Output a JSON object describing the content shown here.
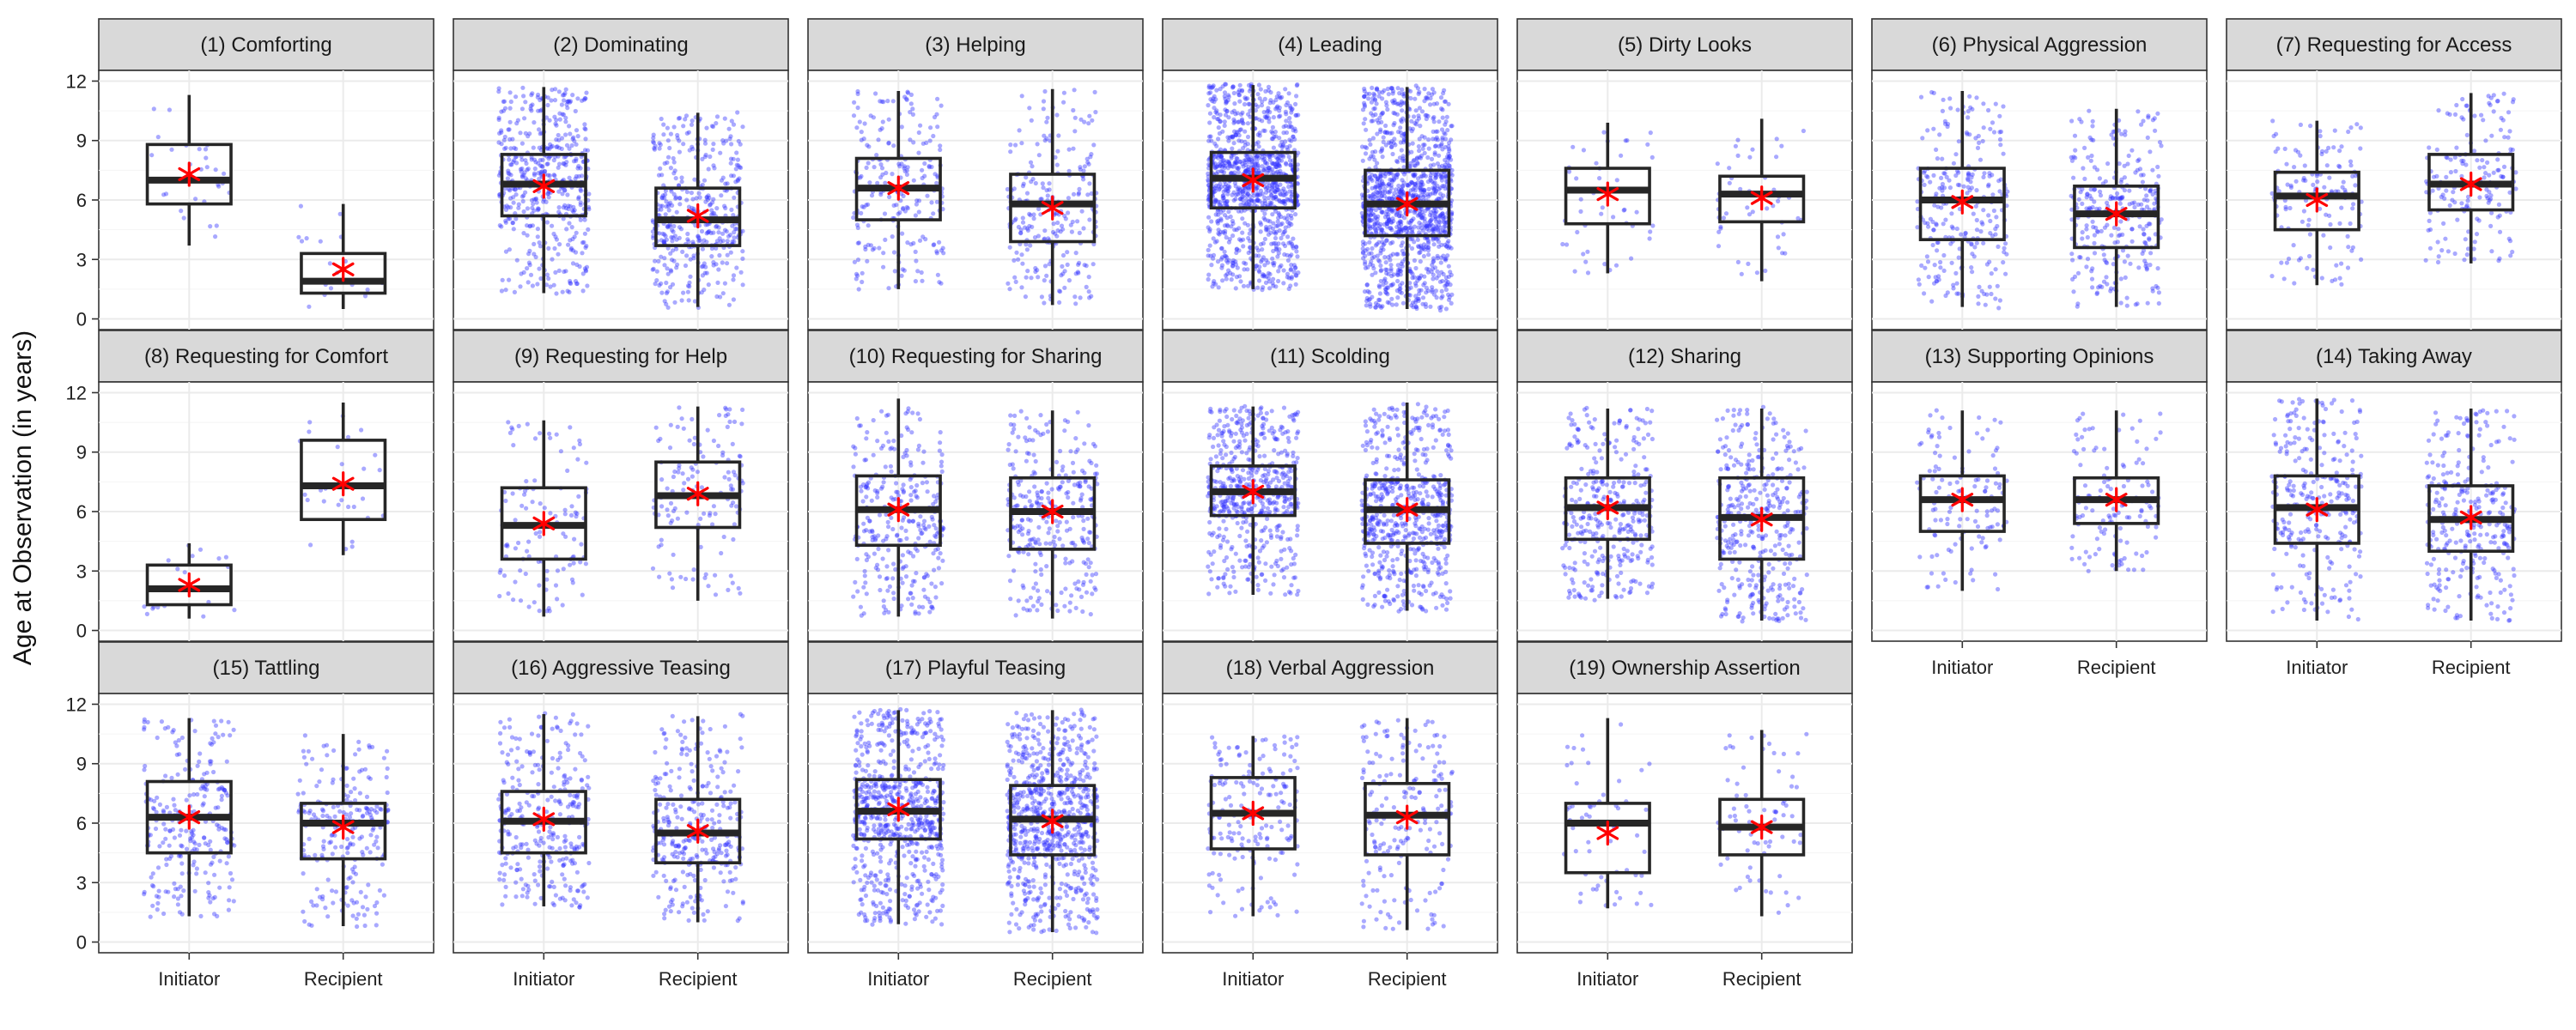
{
  "colors": {
    "points": "#3333ff",
    "mean": "#ff0000",
    "box": "#262626"
  },
  "chart_data": {
    "type": "boxplot",
    "xlabel": "",
    "ylabel": "Age at Observation (in years)",
    "ylim": [
      0,
      12
    ],
    "yticks": [
      0,
      3,
      6,
      9,
      12
    ],
    "categories": [
      "Initiator",
      "Recipient"
    ],
    "grid": true,
    "overlay": "jittered raw points (blue) and group mean (red asterisk)",
    "panels": [
      {
        "title": "(1) Comforting",
        "n": [
          30,
          18
        ],
        "groups": [
          {
            "name": "Initiator",
            "min": 3.7,
            "q1": 5.8,
            "median": 7.0,
            "q3": 8.8,
            "max": 11.3,
            "mean": 7.3
          },
          {
            "name": "Recipient",
            "min": 0.5,
            "q1": 1.3,
            "median": 1.9,
            "q3": 3.3,
            "max": 5.8,
            "mean": 2.5
          }
        ]
      },
      {
        "title": "(2) Dominating",
        "n": [
          500,
          420
        ],
        "groups": [
          {
            "name": "Initiator",
            "min": 1.3,
            "q1": 5.2,
            "median": 6.8,
            "q3": 8.3,
            "max": 11.7,
            "mean": 6.7
          },
          {
            "name": "Recipient",
            "min": 0.6,
            "q1": 3.7,
            "median": 5.0,
            "q3": 6.6,
            "max": 10.4,
            "mean": 5.2
          }
        ]
      },
      {
        "title": "(3) Helping",
        "n": [
          230,
          240
        ],
        "groups": [
          {
            "name": "Initiator",
            "min": 1.5,
            "q1": 5.0,
            "median": 6.6,
            "q3": 8.1,
            "max": 11.5,
            "mean": 6.6
          },
          {
            "name": "Recipient",
            "min": 0.7,
            "q1": 3.9,
            "median": 5.8,
            "q3": 7.3,
            "max": 11.6,
            "mean": 5.6
          }
        ]
      },
      {
        "title": "(4) Leading",
        "n": [
          1100,
          1200
        ],
        "groups": [
          {
            "name": "Initiator",
            "min": 1.5,
            "q1": 5.6,
            "median": 7.1,
            "q3": 8.4,
            "max": 11.8,
            "mean": 7.0
          },
          {
            "name": "Recipient",
            "min": 0.5,
            "q1": 4.2,
            "median": 5.8,
            "q3": 7.5,
            "max": 11.7,
            "mean": 5.8
          }
        ]
      },
      {
        "title": "(5) Dirty Looks",
        "n": [
          45,
          50
        ],
        "groups": [
          {
            "name": "Initiator",
            "min": 2.3,
            "q1": 4.8,
            "median": 6.5,
            "q3": 7.6,
            "max": 9.9,
            "mean": 6.3
          },
          {
            "name": "Recipient",
            "min": 1.9,
            "q1": 4.9,
            "median": 6.3,
            "q3": 7.2,
            "max": 10.1,
            "mean": 6.1
          }
        ]
      },
      {
        "title": "(6) Physical Aggression",
        "n": [
          260,
          300
        ],
        "groups": [
          {
            "name": "Initiator",
            "min": 0.6,
            "q1": 4.0,
            "median": 6.0,
            "q3": 7.6,
            "max": 11.5,
            "mean": 5.9
          },
          {
            "name": "Recipient",
            "min": 0.6,
            "q1": 3.6,
            "median": 5.3,
            "q3": 6.7,
            "max": 10.6,
            "mean": 5.3
          }
        ]
      },
      {
        "title": "(7) Requesting for Access",
        "n": [
          140,
          170
        ],
        "groups": [
          {
            "name": "Initiator",
            "min": 1.7,
            "q1": 4.5,
            "median": 6.2,
            "q3": 7.4,
            "max": 10.0,
            "mean": 6.0
          },
          {
            "name": "Recipient",
            "min": 2.8,
            "q1": 5.5,
            "median": 6.8,
            "q3": 8.3,
            "max": 11.4,
            "mean": 6.8
          }
        ]
      },
      {
        "title": "(8) Requesting for Comfort",
        "n": [
          18,
          28
        ],
        "groups": [
          {
            "name": "Initiator",
            "min": 0.6,
            "q1": 1.3,
            "median": 2.1,
            "q3": 3.3,
            "max": 4.4,
            "mean": 2.3
          },
          {
            "name": "Recipient",
            "min": 3.8,
            "q1": 5.6,
            "median": 7.3,
            "q3": 9.6,
            "max": 11.5,
            "mean": 7.4
          }
        ]
      },
      {
        "title": "(9) Requesting for Help",
        "n": [
          110,
          130
        ],
        "groups": [
          {
            "name": "Initiator",
            "min": 0.7,
            "q1": 3.6,
            "median": 5.3,
            "q3": 7.2,
            "max": 10.6,
            "mean": 5.4
          },
          {
            "name": "Recipient",
            "min": 1.5,
            "q1": 5.2,
            "median": 6.8,
            "q3": 8.5,
            "max": 11.3,
            "mean": 6.9
          }
        ]
      },
      {
        "title": "(10) Requesting for Sharing",
        "n": [
          300,
          300
        ],
        "groups": [
          {
            "name": "Initiator",
            "min": 0.7,
            "q1": 4.3,
            "median": 6.1,
            "q3": 7.8,
            "max": 11.7,
            "mean": 6.1
          },
          {
            "name": "Recipient",
            "min": 0.6,
            "q1": 4.1,
            "median": 6.0,
            "q3": 7.7,
            "max": 11.1,
            "mean": 6.0
          }
        ]
      },
      {
        "title": "(11) Scolding",
        "n": [
          560,
          600
        ],
        "groups": [
          {
            "name": "Initiator",
            "min": 1.8,
            "q1": 5.8,
            "median": 7.0,
            "q3": 8.3,
            "max": 11.3,
            "mean": 7.0
          },
          {
            "name": "Recipient",
            "min": 1.0,
            "q1": 4.4,
            "median": 6.1,
            "q3": 7.6,
            "max": 11.5,
            "mean": 6.1
          }
        ]
      },
      {
        "title": "(12) Sharing",
        "n": [
          340,
          380
        ],
        "groups": [
          {
            "name": "Initiator",
            "min": 1.6,
            "q1": 4.6,
            "median": 6.2,
            "q3": 7.7,
            "max": 11.2,
            "mean": 6.2
          },
          {
            "name": "Recipient",
            "min": 0.5,
            "q1": 3.6,
            "median": 5.7,
            "q3": 7.7,
            "max": 11.2,
            "mean": 5.6
          }
        ]
      },
      {
        "title": "(13) Supporting Opinions",
        "n": [
          120,
          130
        ],
        "groups": [
          {
            "name": "Initiator",
            "min": 2.0,
            "q1": 5.0,
            "median": 6.6,
            "q3": 7.8,
            "max": 11.1,
            "mean": 6.6
          },
          {
            "name": "Recipient",
            "min": 3.0,
            "q1": 5.4,
            "median": 6.6,
            "q3": 7.7,
            "max": 11.1,
            "mean": 6.6
          }
        ]
      },
      {
        "title": "(14) Taking Away",
        "n": [
          280,
          300
        ],
        "groups": [
          {
            "name": "Initiator",
            "min": 0.5,
            "q1": 4.4,
            "median": 6.2,
            "q3": 7.8,
            "max": 11.7,
            "mean": 6.1
          },
          {
            "name": "Recipient",
            "min": 0.5,
            "q1": 4.0,
            "median": 5.6,
            "q3": 7.3,
            "max": 11.2,
            "mean": 5.7
          }
        ]
      },
      {
        "title": "(15) Tattling",
        "n": [
          250,
          230
        ],
        "groups": [
          {
            "name": "Initiator",
            "min": 1.3,
            "q1": 4.5,
            "median": 6.3,
            "q3": 8.1,
            "max": 11.3,
            "mean": 6.3
          },
          {
            "name": "Recipient",
            "min": 0.8,
            "q1": 4.2,
            "median": 6.0,
            "q3": 7.0,
            "max": 10.5,
            "mean": 5.8
          }
        ]
      },
      {
        "title": "(16) Aggressive Teasing",
        "n": [
          300,
          310
        ],
        "groups": [
          {
            "name": "Initiator",
            "min": 1.8,
            "q1": 4.5,
            "median": 6.1,
            "q3": 7.6,
            "max": 11.5,
            "mean": 6.2
          },
          {
            "name": "Recipient",
            "min": 1.0,
            "q1": 4.0,
            "median": 5.5,
            "q3": 7.2,
            "max": 11.4,
            "mean": 5.6
          }
        ]
      },
      {
        "title": "(17) Playful Teasing",
        "n": [
          700,
          760
        ],
        "groups": [
          {
            "name": "Initiator",
            "min": 0.9,
            "q1": 5.2,
            "median": 6.6,
            "q3": 8.2,
            "max": 11.7,
            "mean": 6.7
          },
          {
            "name": "Recipient",
            "min": 0.5,
            "q1": 4.4,
            "median": 6.2,
            "q3": 7.9,
            "max": 11.7,
            "mean": 6.1
          }
        ]
      },
      {
        "title": "(18) Verbal Aggression",
        "n": [
          180,
          200
        ],
        "groups": [
          {
            "name": "Initiator",
            "min": 1.3,
            "q1": 4.7,
            "median": 6.5,
            "q3": 8.3,
            "max": 10.4,
            "mean": 6.5
          },
          {
            "name": "Recipient",
            "min": 0.6,
            "q1": 4.4,
            "median": 6.4,
            "q3": 8.0,
            "max": 11.3,
            "mean": 6.3
          }
        ]
      },
      {
        "title": "(19) Ownership Assertion",
        "n": [
          60,
          70
        ],
        "groups": [
          {
            "name": "Initiator",
            "min": 1.7,
            "q1": 3.5,
            "median": 6.0,
            "q3": 7.0,
            "max": 11.3,
            "mean": 5.5
          },
          {
            "name": "Recipient",
            "min": 1.3,
            "q1": 4.4,
            "median": 5.8,
            "q3": 7.2,
            "max": 10.7,
            "mean": 5.8
          }
        ]
      }
    ]
  }
}
